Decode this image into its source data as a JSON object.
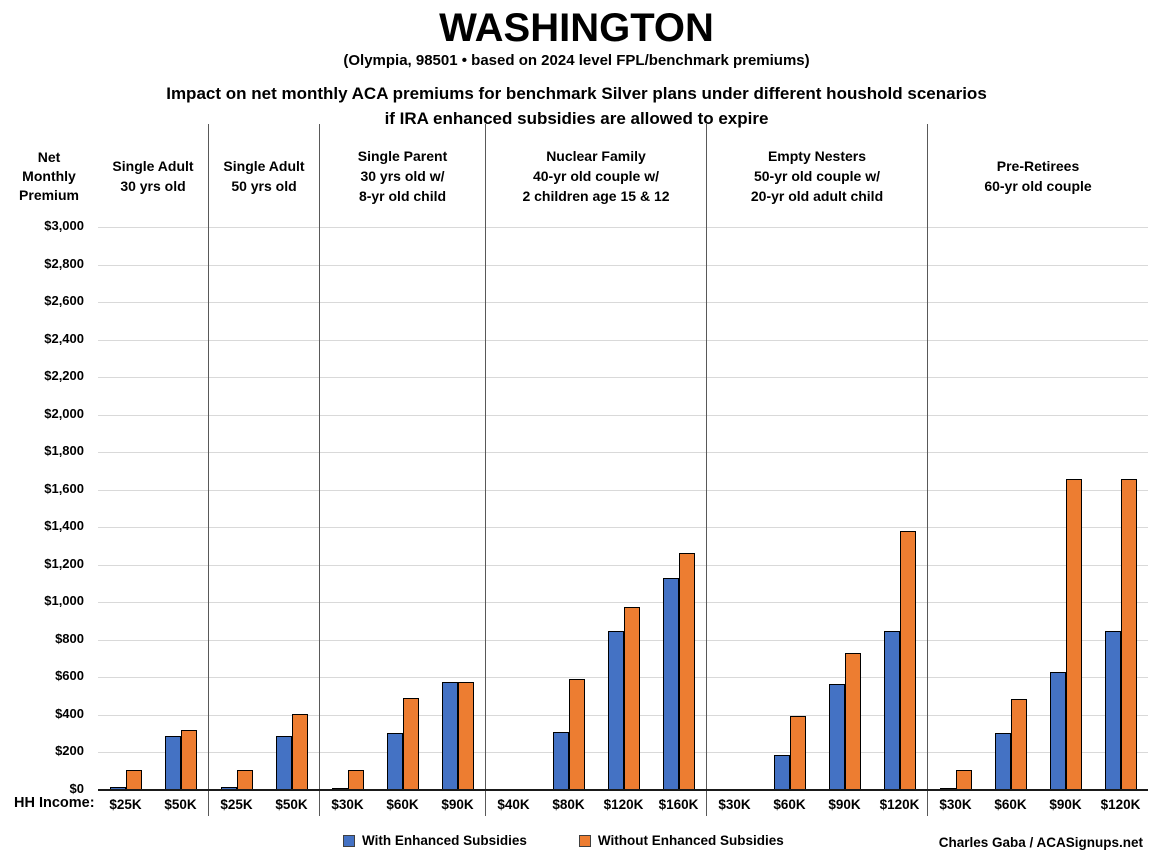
{
  "title": "WASHINGTON",
  "subtitle": "(Olympia, 98501 • based on 2024 level FPL/benchmark premiums)",
  "headline": {
    "line1": "Impact on net monthly ACA premiums for benchmark Silver plans under different houshold scenarios",
    "line2": "if IRA enhanced subsidies are allowed to expire"
  },
  "y_axis_title_lines": [
    "Net",
    "Monthly",
    "Premium"
  ],
  "hh_income_label": "HH Income:",
  "credit": "Charles Gaba / ACASignups.net",
  "colors": {
    "with_subsidies": "#4472C4",
    "without_subsidies": "#ED7D31",
    "gridline": "#D9D9D9",
    "divider": "#595959",
    "axis": "#1A1A1A"
  },
  "legend": [
    {
      "label": "With Enhanced Subsidies",
      "color_key": "with_subsidies"
    },
    {
      "label": "Without Enhanced Subsidies",
      "color_key": "without_subsidies"
    }
  ],
  "chart_data": {
    "type": "bar",
    "title": "WASHINGTON — Impact on net monthly ACA premiums for benchmark Silver plans under different houshold scenarios if IRA enhanced subsidies are allowed to expire",
    "subtitle": "(Olympia, 98501 • based on 2024 level FPL/benchmark premiums)",
    "ylabel": "Net Monthly Premium",
    "xlabel": "HH Income",
    "ylim": [
      0,
      3000
    ],
    "ytick_step": 200,
    "grid": true,
    "legend_position": "bottom",
    "series_names": [
      "With Enhanced Subsidies",
      "Without Enhanced Subsidies"
    ],
    "groups": [
      {
        "label_lines": [
          "Single Adult",
          "30 yrs old"
        ],
        "categories": [
          "$25K",
          "$50K"
        ],
        "with_enhanced_subsidies": [
          15,
          290
        ],
        "without_enhanced_subsidies": [
          105,
          320
        ]
      },
      {
        "label_lines": [
          "Single Adult",
          "50 yrs old"
        ],
        "categories": [
          "$25K",
          "$50K"
        ],
        "with_enhanced_subsidies": [
          15,
          290
        ],
        "without_enhanced_subsidies": [
          105,
          405
        ]
      },
      {
        "label_lines": [
          "Single Parent",
          "30 yrs old w/",
          "8-yr old child"
        ],
        "categories": [
          "$30K",
          "$60K",
          "$90K"
        ],
        "with_enhanced_subsidies": [
          5,
          305,
          575
        ],
        "without_enhanced_subsidies": [
          105,
          490,
          575
        ]
      },
      {
        "label_lines": [
          "Nuclear Family",
          "40-yr old couple w/",
          "2 children age 15 & 12"
        ],
        "categories": [
          "$40K",
          "$80K",
          "$120K",
          "$160K"
        ],
        "with_enhanced_subsidies": [
          0,
          310,
          845,
          1130
        ],
        "without_enhanced_subsidies": [
          0,
          590,
          975,
          1265
        ]
      },
      {
        "label_lines": [
          "Empty Nesters",
          "50-yr old couple w/",
          "20-yr old adult child"
        ],
        "categories": [
          "$30K",
          "$60K",
          "$90K",
          "$120K"
        ],
        "with_enhanced_subsidies": [
          0,
          185,
          565,
          845
        ],
        "without_enhanced_subsidies": [
          0,
          395,
          730,
          1380
        ]
      },
      {
        "label_lines": [
          "Pre-Retirees",
          "60-yr old couple"
        ],
        "categories": [
          "$30K",
          "$60K",
          "$90K",
          "$120K"
        ],
        "with_enhanced_subsidies": [
          10,
          305,
          630,
          845
        ],
        "without_enhanced_subsidies": [
          105,
          485,
          1655,
          1655
        ]
      }
    ]
  }
}
